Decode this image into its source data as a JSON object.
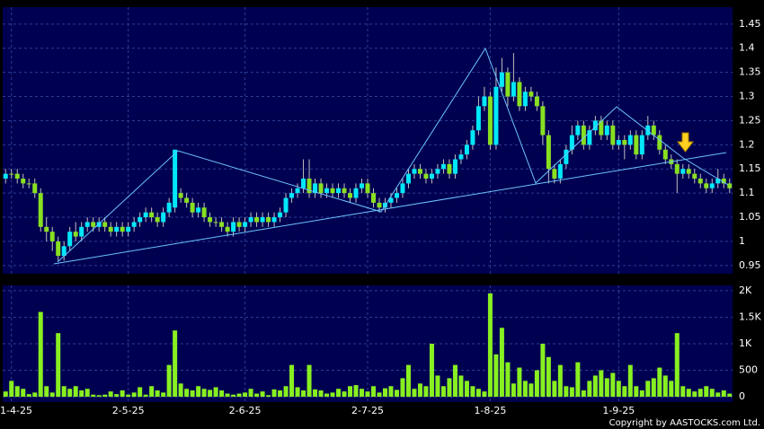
{
  "chart_data": [
    {
      "type": "candlestick",
      "up_color": "#00e8f8",
      "down_color": "#88e020",
      "open": [
        1.13,
        1.14,
        1.14,
        1.13,
        1.12,
        1.12,
        1.1,
        1.03,
        1.02,
        1.0,
        0.97,
        0.99,
        1.02,
        1.01,
        1.03,
        1.04,
        1.03,
        1.04,
        1.03,
        1.02,
        1.03,
        1.02,
        1.03,
        1.04,
        1.05,
        1.06,
        1.05,
        1.04,
        1.06,
        1.07,
        1.1,
        1.09,
        1.08,
        1.06,
        1.07,
        1.05,
        1.04,
        1.04,
        1.03,
        1.02,
        1.04,
        1.03,
        1.04,
        1.05,
        1.04,
        1.05,
        1.04,
        1.05,
        1.06,
        1.09,
        1.1,
        1.11,
        1.13,
        1.1,
        1.12,
        1.1,
        1.11,
        1.1,
        1.11,
        1.1,
        1.09,
        1.11,
        1.12,
        1.1,
        1.08,
        1.07,
        1.08,
        1.09,
        1.1,
        1.12,
        1.14,
        1.15,
        1.14,
        1.13,
        1.14,
        1.15,
        1.16,
        1.14,
        1.17,
        1.18,
        1.2,
        1.23,
        1.28,
        1.3,
        1.2,
        1.32,
        1.35,
        1.3,
        1.33,
        1.28,
        1.31,
        1.3,
        1.28,
        1.22,
        1.15,
        1.13,
        1.16,
        1.19,
        1.22,
        1.24,
        1.2,
        1.23,
        1.25,
        1.22,
        1.24,
        1.2,
        1.21,
        1.2,
        1.22,
        1.18,
        1.22,
        1.24,
        1.22,
        1.19,
        1.17,
        1.16,
        1.14,
        1.15,
        1.14,
        1.13,
        1.12,
        1.11,
        1.12,
        1.13,
        1.12
      ],
      "high": [
        1.15,
        1.15,
        1.15,
        1.14,
        1.13,
        1.13,
        1.11,
        1.05,
        1.03,
        1.01,
        1.0,
        1.03,
        1.04,
        1.04,
        1.05,
        1.05,
        1.05,
        1.05,
        1.04,
        1.04,
        1.04,
        1.04,
        1.05,
        1.06,
        1.07,
        1.07,
        1.06,
        1.07,
        1.09,
        1.19,
        1.11,
        1.1,
        1.09,
        1.08,
        1.08,
        1.06,
        1.05,
        1.05,
        1.04,
        1.05,
        1.05,
        1.05,
        1.06,
        1.06,
        1.06,
        1.06,
        1.06,
        1.07,
        1.1,
        1.11,
        1.12,
        1.17,
        1.17,
        1.13,
        1.13,
        1.12,
        1.12,
        1.12,
        1.12,
        1.11,
        1.12,
        1.13,
        1.13,
        1.11,
        1.09,
        1.09,
        1.1,
        1.11,
        1.13,
        1.15,
        1.16,
        1.16,
        1.15,
        1.15,
        1.16,
        1.17,
        1.17,
        1.18,
        1.19,
        1.21,
        1.24,
        1.3,
        1.32,
        1.31,
        1.36,
        1.38,
        1.36,
        1.39,
        1.34,
        1.32,
        1.32,
        1.31,
        1.29,
        1.23,
        1.16,
        1.17,
        1.2,
        1.24,
        1.25,
        1.25,
        1.24,
        1.26,
        1.26,
        1.25,
        1.25,
        1.22,
        1.22,
        1.23,
        1.23,
        1.23,
        1.26,
        1.25,
        1.23,
        1.2,
        1.18,
        1.17,
        1.16,
        1.16,
        1.15,
        1.14,
        1.13,
        1.13,
        1.15,
        1.14,
        1.13
      ],
      "low": [
        1.12,
        1.13,
        1.12,
        1.11,
        1.11,
        1.09,
        1.02,
        1.0,
        0.98,
        0.96,
        0.96,
        0.98,
        1.0,
        1.0,
        1.02,
        1.02,
        1.02,
        1.02,
        1.01,
        1.01,
        1.01,
        1.01,
        1.02,
        1.03,
        1.04,
        1.04,
        1.03,
        1.03,
        1.05,
        1.06,
        1.08,
        1.07,
        1.05,
        1.05,
        1.04,
        1.03,
        1.03,
        1.02,
        1.01,
        1.01,
        1.02,
        1.02,
        1.03,
        1.03,
        1.03,
        1.03,
        1.03,
        1.04,
        1.05,
        1.08,
        1.09,
        1.1,
        1.09,
        1.09,
        1.09,
        1.09,
        1.09,
        1.09,
        1.09,
        1.08,
        1.08,
        1.1,
        1.09,
        1.07,
        1.06,
        1.06,
        1.07,
        1.08,
        1.09,
        1.11,
        1.13,
        1.13,
        1.12,
        1.12,
        1.13,
        1.14,
        1.13,
        1.13,
        1.16,
        1.17,
        1.19,
        1.22,
        1.27,
        1.19,
        1.19,
        1.31,
        1.28,
        1.29,
        1.27,
        1.27,
        1.29,
        1.27,
        1.2,
        1.12,
        1.12,
        1.12,
        1.15,
        1.18,
        1.21,
        1.19,
        1.19,
        1.22,
        1.21,
        1.21,
        1.19,
        1.19,
        1.17,
        1.19,
        1.17,
        1.17,
        1.21,
        1.21,
        1.18,
        1.16,
        1.15,
        1.1,
        1.13,
        1.13,
        1.12,
        1.11,
        1.1,
        1.1,
        1.11,
        1.11,
        1.1
      ],
      "close": [
        1.14,
        1.14,
        1.13,
        1.12,
        1.12,
        1.1,
        1.03,
        1.02,
        1.0,
        0.97,
        0.99,
        1.02,
        1.01,
        1.03,
        1.04,
        1.03,
        1.04,
        1.03,
        1.02,
        1.03,
        1.02,
        1.03,
        1.04,
        1.05,
        1.06,
        1.05,
        1.04,
        1.06,
        1.08,
        1.19,
        1.09,
        1.08,
        1.06,
        1.07,
        1.05,
        1.04,
        1.04,
        1.03,
        1.02,
        1.04,
        1.03,
        1.04,
        1.05,
        1.04,
        1.05,
        1.04,
        1.05,
        1.06,
        1.09,
        1.1,
        1.11,
        1.13,
        1.1,
        1.12,
        1.1,
        1.11,
        1.1,
        1.11,
        1.1,
        1.09,
        1.11,
        1.12,
        1.1,
        1.08,
        1.07,
        1.08,
        1.09,
        1.1,
        1.12,
        1.14,
        1.15,
        1.14,
        1.13,
        1.14,
        1.15,
        1.16,
        1.14,
        1.17,
        1.18,
        1.2,
        1.23,
        1.28,
        1.3,
        1.2,
        1.32,
        1.35,
        1.3,
        1.33,
        1.28,
        1.31,
        1.3,
        1.28,
        1.22,
        1.15,
        1.13,
        1.16,
        1.19,
        1.22,
        1.24,
        1.2,
        1.23,
        1.25,
        1.22,
        1.24,
        1.2,
        1.21,
        1.2,
        1.22,
        1.18,
        1.22,
        1.24,
        1.22,
        1.19,
        1.17,
        1.16,
        1.14,
        1.15,
        1.14,
        1.13,
        1.12,
        1.11,
        1.12,
        1.13,
        1.12,
        1.11
      ],
      "ylim": [
        0.933,
        1.485
      ],
      "yticks": [
        0.95,
        1,
        1.05,
        1.1,
        1.15,
        1.2,
        1.25,
        1.3,
        1.35,
        1.4,
        1.45
      ],
      "grid": true
    },
    {
      "type": "bar",
      "color": "#88f020",
      "categories": [
        null,
        "1-4-25",
        null,
        null,
        null,
        null,
        null,
        null,
        null,
        null,
        null,
        null,
        null,
        null,
        null,
        null,
        null,
        null,
        null,
        null,
        null,
        "2-5-25",
        null,
        null,
        null,
        null,
        null,
        null,
        null,
        null,
        null,
        null,
        null,
        null,
        null,
        null,
        null,
        null,
        null,
        null,
        null,
        "2-6-25",
        null,
        null,
        null,
        null,
        null,
        null,
        null,
        null,
        null,
        null,
        null,
        null,
        null,
        null,
        null,
        null,
        null,
        null,
        null,
        null,
        "2-7-25",
        null,
        null,
        null,
        null,
        null,
        null,
        null,
        null,
        null,
        null,
        null,
        null,
        null,
        null,
        null,
        null,
        null,
        null,
        null,
        null,
        "1-8-25",
        null,
        null,
        null,
        null,
        null,
        null,
        null,
        null,
        null,
        null,
        null,
        null,
        null,
        null,
        null,
        null,
        null,
        null,
        null,
        null,
        null,
        "1-9-25",
        null,
        null,
        null,
        null,
        null,
        null,
        null,
        null,
        null,
        null,
        null,
        null,
        null,
        null,
        null,
        null,
        null,
        null,
        null
      ],
      "values": [
        100,
        300,
        200,
        150,
        50,
        80,
        1600,
        200,
        80,
        1200,
        200,
        150,
        200,
        120,
        150,
        40,
        30,
        40,
        100,
        50,
        120,
        40,
        80,
        180,
        40,
        200,
        120,
        80,
        600,
        1250,
        250,
        150,
        120,
        200,
        150,
        130,
        180,
        120,
        60,
        40,
        60,
        80,
        150,
        60,
        100,
        30,
        140,
        120,
        200,
        600,
        180,
        120,
        600,
        140,
        120,
        60,
        80,
        150,
        100,
        200,
        220,
        150,
        100,
        200,
        80,
        160,
        200,
        130,
        350,
        600,
        150,
        250,
        200,
        1000,
        400,
        200,
        350,
        600,
        400,
        300,
        200,
        150,
        100,
        1950,
        800,
        1300,
        650,
        250,
        550,
        300,
        250,
        500,
        1000,
        750,
        300,
        600,
        200,
        180,
        650,
        120,
        300,
        400,
        500,
        350,
        450,
        300,
        200,
        600,
        200,
        120,
        300,
        350,
        550,
        400,
        300,
        1200,
        200,
        150,
        100,
        150,
        200,
        150,
        80,
        120,
        60
      ],
      "ylim": [
        -100,
        2100
      ],
      "yticks": [
        0,
        500,
        {
          "value": 1000,
          "label": "1K"
        },
        {
          "value": 1500,
          "label": "1.5K"
        },
        {
          "value": 2000,
          "label": "2K"
        }
      ],
      "grid": true
    }
  ],
  "copyright": "Copyright by AASTOCKS.com Ltd."
}
